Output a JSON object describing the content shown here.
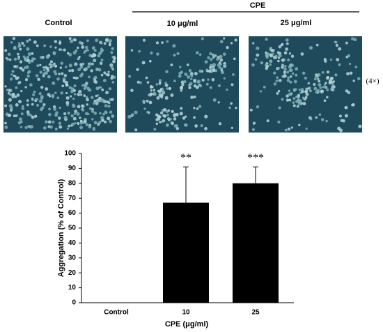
{
  "panels": {
    "group_label": "CPE",
    "labels": [
      "Control",
      "10 μg/ml",
      "25 μg/ml"
    ],
    "magnification": "(4×)"
  },
  "chart_data": {
    "type": "bar",
    "categories": [
      "Control",
      "10",
      "25"
    ],
    "values": [
      0,
      67,
      80
    ],
    "errors": [
      null,
      24,
      11
    ],
    "annotations": [
      null,
      "**",
      "***"
    ],
    "color": "#000000",
    "ylabel": "Aggregation (% of Control)",
    "xlabel": "CPE (μg/ml)",
    "ylim": [
      0,
      100
    ],
    "yticks": [
      0,
      10,
      20,
      30,
      40,
      50,
      60,
      70,
      80,
      90,
      100
    ]
  }
}
